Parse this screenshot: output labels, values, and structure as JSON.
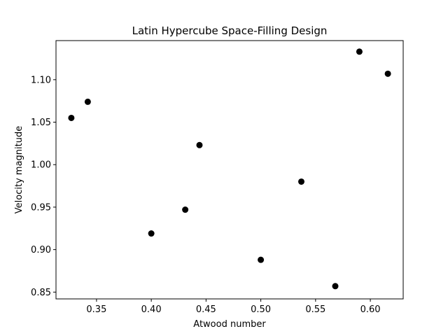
{
  "chart_data": {
    "type": "scatter",
    "title": "Latin Hypercube Space-Filling Design",
    "xlabel": "Atwood number",
    "ylabel": "Velocity magnitude",
    "xlim": [
      0.313,
      0.63
    ],
    "ylim": [
      0.842,
      1.146
    ],
    "xticks": [
      0.35,
      0.4,
      0.45,
      0.5,
      0.55,
      0.6
    ],
    "xtick_labels": [
      "0.35",
      "0.40",
      "0.45",
      "0.50",
      "0.55",
      "0.60"
    ],
    "yticks": [
      0.85,
      0.9,
      0.95,
      1.0,
      1.05,
      1.1
    ],
    "ytick_labels": [
      "0.85",
      "0.90",
      "0.95",
      "1.00",
      "1.05",
      "1.10"
    ],
    "grid": false,
    "marker_color": "#000000",
    "points": [
      {
        "x": 0.327,
        "y": 1.055
      },
      {
        "x": 0.342,
        "y": 1.074
      },
      {
        "x": 0.4,
        "y": 0.919
      },
      {
        "x": 0.431,
        "y": 0.947
      },
      {
        "x": 0.444,
        "y": 1.023
      },
      {
        "x": 0.5,
        "y": 0.888
      },
      {
        "x": 0.537,
        "y": 0.98
      },
      {
        "x": 0.568,
        "y": 0.857
      },
      {
        "x": 0.59,
        "y": 1.133
      },
      {
        "x": 0.616,
        "y": 1.107
      }
    ]
  }
}
